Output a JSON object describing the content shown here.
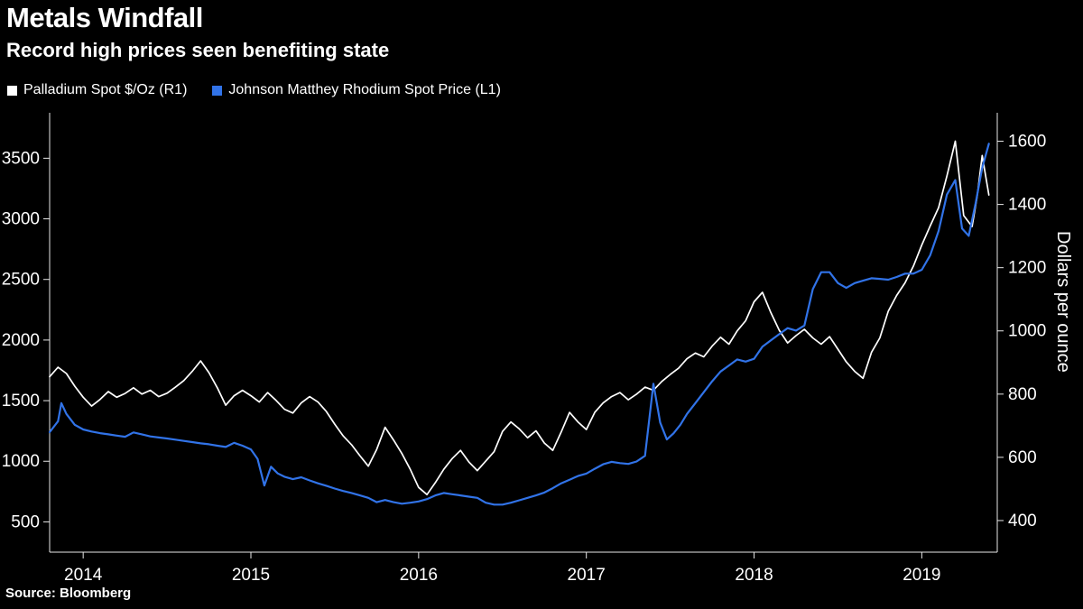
{
  "header": {
    "title": "Metals Windfall",
    "subtitle": "Record high prices seen benefiting state"
  },
  "footer": {
    "source": "Source: Bloomberg"
  },
  "colors": {
    "background": "#000000",
    "text": "#ffffff",
    "axis": "#e8e8e8",
    "palladium_line": "#ffffff",
    "rhodium_line": "#3173e8"
  },
  "chart_data": {
    "type": "line",
    "title": "Metals Windfall",
    "subtitle": "Record high prices seen benefiting state",
    "source": "Bloomberg",
    "legend_position": "top-left",
    "grid": false,
    "x_domain": [
      2013.8,
      2019.45
    ],
    "x_ticks": [
      2014,
      2015,
      2016,
      2017,
      2018,
      2019
    ],
    "axes": {
      "left": {
        "domain": [
          250,
          3875
        ],
        "ticks": [
          500,
          1000,
          1500,
          2000,
          2500,
          3000,
          3500
        ],
        "label": ""
      },
      "right": {
        "domain": [
          300,
          1690
        ],
        "ticks": [
          400,
          600,
          800,
          1000,
          1200,
          1400,
          1600
        ],
        "label": "Dollars per ounce"
      }
    },
    "series": [
      {
        "name": "Palladium Spot $/Oz (R1)",
        "axis": "right",
        "color": "#ffffff",
        "width": 1.7,
        "x": [
          2013.8,
          2013.85,
          2013.9,
          2013.95,
          2014.0,
          2014.05,
          2014.1,
          2014.15,
          2014.2,
          2014.25,
          2014.3,
          2014.35,
          2014.4,
          2014.45,
          2014.5,
          2014.55,
          2014.6,
          2014.65,
          2014.7,
          2014.75,
          2014.8,
          2014.85,
          2014.9,
          2014.95,
          2015.0,
          2015.05,
          2015.1,
          2015.15,
          2015.2,
          2015.25,
          2015.3,
          2015.35,
          2015.4,
          2015.45,
          2015.5,
          2015.55,
          2015.6,
          2015.65,
          2015.7,
          2015.75,
          2015.8,
          2015.85,
          2015.9,
          2015.95,
          2016.0,
          2016.05,
          2016.1,
          2016.15,
          2016.2,
          2016.25,
          2016.3,
          2016.35,
          2016.4,
          2016.45,
          2016.5,
          2016.55,
          2016.6,
          2016.65,
          2016.7,
          2016.75,
          2016.8,
          2016.85,
          2016.9,
          2016.95,
          2017.0,
          2017.05,
          2017.1,
          2017.15,
          2017.2,
          2017.25,
          2017.3,
          2017.35,
          2017.4,
          2017.45,
          2017.5,
          2017.55,
          2017.6,
          2017.65,
          2017.7,
          2017.75,
          2017.8,
          2017.85,
          2017.9,
          2017.95,
          2018.0,
          2018.05,
          2018.1,
          2018.15,
          2018.2,
          2018.25,
          2018.3,
          2018.35,
          2018.4,
          2018.45,
          2018.5,
          2018.55,
          2018.6,
          2018.65,
          2018.7,
          2018.75,
          2018.8,
          2018.85,
          2018.9,
          2018.95,
          2019.0,
          2019.05,
          2019.1,
          2019.15,
          2019.2,
          2019.25,
          2019.3,
          2019.33,
          2019.36,
          2019.4
        ],
        "y": [
          855,
          885,
          865,
          825,
          790,
          762,
          783,
          808,
          790,
          802,
          820,
          800,
          812,
          792,
          803,
          822,
          843,
          872,
          905,
          868,
          820,
          765,
          795,
          812,
          795,
          775,
          805,
          780,
          752,
          740,
          772,
          792,
          775,
          745,
          705,
          668,
          640,
          605,
          572,
          625,
          695,
          655,
          612,
          562,
          505,
          482,
          520,
          562,
          596,
          622,
          585,
          558,
          588,
          618,
          682,
          712,
          690,
          662,
          684,
          645,
          622,
          680,
          742,
          712,
          688,
          742,
          772,
          792,
          805,
          782,
          800,
          822,
          812,
          840,
          862,
          882,
          912,
          930,
          918,
          952,
          980,
          958,
          1000,
          1032,
          1092,
          1122,
          1058,
          1002,
          962,
          985,
          1005,
          978,
          958,
          982,
          942,
          902,
          872,
          850,
          932,
          978,
          1062,
          1112,
          1152,
          1205,
          1272,
          1332,
          1390,
          1490,
          1600,
          1365,
          1330,
          1425,
          1555,
          1430
        ]
      },
      {
        "name": "Johnson Matthey Rhodium Spot Price (L1)",
        "axis": "left",
        "color": "#3173e8",
        "width": 2.2,
        "x": [
          2013.8,
          2013.85,
          2013.87,
          2013.9,
          2013.95,
          2014.0,
          2014.05,
          2014.1,
          2014.15,
          2014.2,
          2014.25,
          2014.3,
          2014.35,
          2014.4,
          2014.45,
          2014.5,
          2014.55,
          2014.6,
          2014.65,
          2014.7,
          2014.75,
          2014.8,
          2014.85,
          2014.9,
          2014.95,
          2015.0,
          2015.04,
          2015.08,
          2015.12,
          2015.16,
          2015.2,
          2015.25,
          2015.3,
          2015.35,
          2015.4,
          2015.45,
          2015.5,
          2015.55,
          2015.6,
          2015.65,
          2015.7,
          2015.75,
          2015.8,
          2015.85,
          2015.9,
          2015.95,
          2016.0,
          2016.05,
          2016.1,
          2016.15,
          2016.2,
          2016.25,
          2016.3,
          2016.35,
          2016.4,
          2016.45,
          2016.5,
          2016.55,
          2016.6,
          2016.65,
          2016.7,
          2016.75,
          2016.8,
          2016.85,
          2016.9,
          2016.95,
          2017.0,
          2017.05,
          2017.1,
          2017.15,
          2017.2,
          2017.25,
          2017.3,
          2017.35,
          2017.4,
          2017.44,
          2017.48,
          2017.52,
          2017.56,
          2017.6,
          2017.65,
          2017.7,
          2017.75,
          2017.8,
          2017.85,
          2017.9,
          2017.95,
          2018.0,
          2018.05,
          2018.1,
          2018.15,
          2018.2,
          2018.25,
          2018.3,
          2018.35,
          2018.4,
          2018.45,
          2018.5,
          2018.55,
          2018.6,
          2018.65,
          2018.7,
          2018.75,
          2018.8,
          2018.85,
          2018.9,
          2018.95,
          2019.0,
          2019.05,
          2019.1,
          2019.15,
          2019.2,
          2019.24,
          2019.28,
          2019.32,
          2019.36,
          2019.4
        ],
        "y": [
          1240,
          1330,
          1480,
          1390,
          1300,
          1262,
          1245,
          1232,
          1222,
          1212,
          1202,
          1238,
          1222,
          1205,
          1196,
          1188,
          1178,
          1168,
          1158,
          1148,
          1140,
          1128,
          1118,
          1152,
          1128,
          1098,
          1020,
          800,
          955,
          900,
          872,
          852,
          868,
          842,
          818,
          798,
          775,
          755,
          738,
          718,
          698,
          662,
          680,
          662,
          650,
          658,
          668,
          688,
          718,
          738,
          728,
          718,
          708,
          698,
          658,
          642,
          642,
          658,
          678,
          698,
          718,
          742,
          778,
          818,
          848,
          878,
          898,
          938,
          975,
          995,
          985,
          978,
          998,
          1045,
          1640,
          1320,
          1180,
          1230,
          1300,
          1390,
          1480,
          1570,
          1660,
          1740,
          1790,
          1840,
          1822,
          1845,
          1945,
          1998,
          2048,
          2098,
          2078,
          2120,
          2420,
          2560,
          2560,
          2470,
          2430,
          2470,
          2490,
          2510,
          2505,
          2498,
          2520,
          2548,
          2548,
          2580,
          2700,
          2900,
          3200,
          3320,
          2920,
          2860,
          3120,
          3420,
          3620
        ]
      }
    ]
  }
}
